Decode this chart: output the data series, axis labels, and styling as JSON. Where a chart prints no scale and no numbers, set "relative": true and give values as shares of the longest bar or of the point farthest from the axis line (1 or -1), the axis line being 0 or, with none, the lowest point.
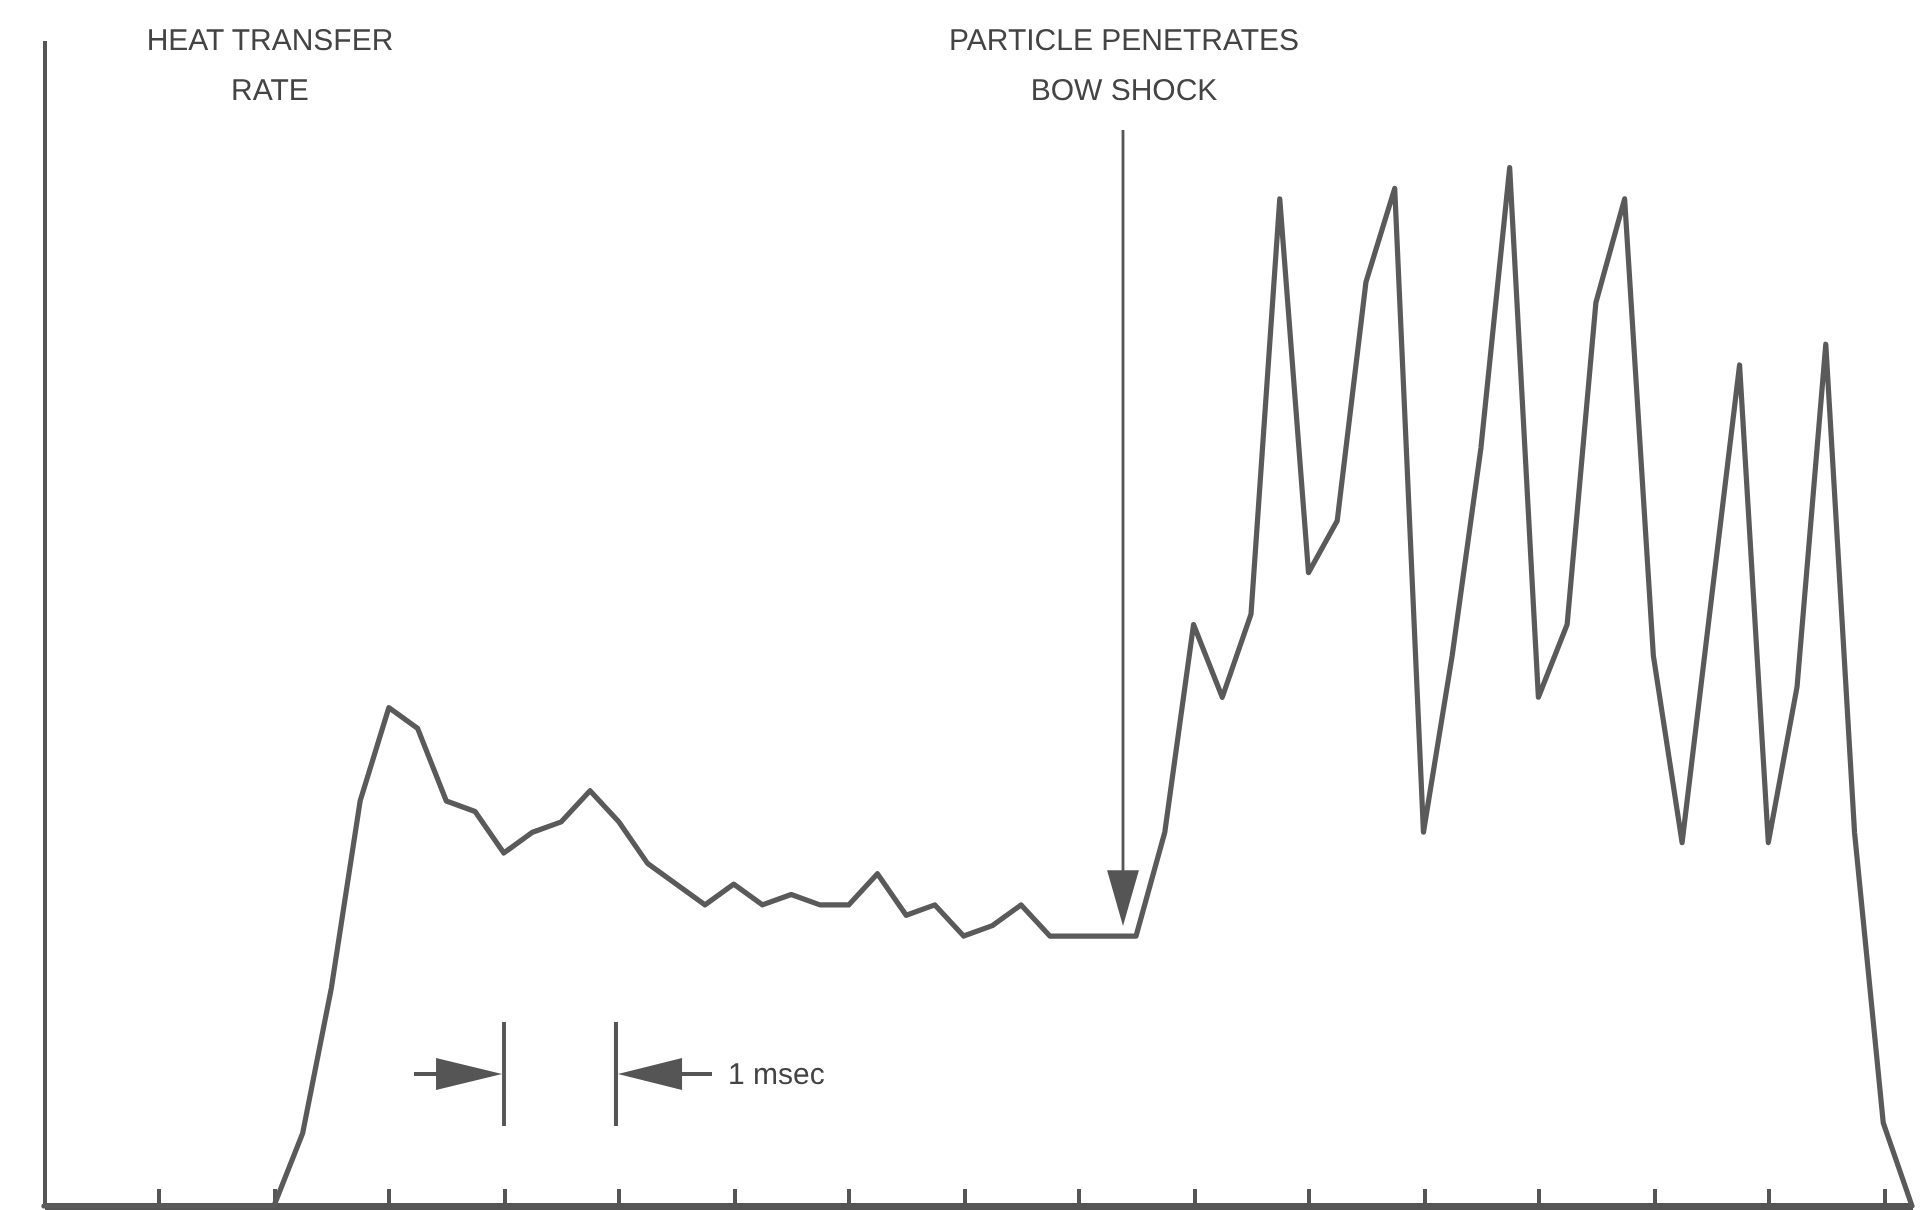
{
  "chart_data": {
    "type": "line",
    "relative": true,
    "ylabel": "HEAT TRANSFER RATE",
    "annotations": [
      "PARTICLE PENETRATES BOW SHOCK",
      "1 msec"
    ],
    "categories": [
      null,
      null,
      null,
      null,
      null,
      null,
      null,
      null,
      null,
      null,
      null,
      null,
      null,
      null,
      null,
      null,
      null,
      null,
      null,
      null,
      null,
      null,
      null,
      null,
      null,
      null,
      null,
      null,
      null,
      null,
      null,
      null,
      null,
      null,
      null,
      null,
      null,
      null,
      null,
      null,
      null,
      null,
      null,
      null,
      null,
      null,
      null,
      null,
      null,
      null,
      null,
      null,
      null,
      null,
      null,
      null,
      null,
      null,
      null,
      null,
      null,
      null,
      null,
      null,
      null,
      null
    ],
    "series": [
      {
        "color": "#5a5a5a",
        "values": [
          0,
          0,
          0,
          0,
          0,
          0,
          0,
          0,
          0,
          0.07,
          0.21,
          0.39,
          0.48,
          0.46,
          0.39,
          0.38,
          0.34,
          0.36,
          0.37,
          0.4,
          0.37,
          0.33,
          0.31,
          0.29,
          0.31,
          0.29,
          0.3,
          0.29,
          0.29,
          0.32,
          0.28,
          0.29,
          0.26,
          0.27,
          0.29,
          0.26,
          0.26,
          0.26,
          0.26,
          0.36,
          0.56,
          0.49,
          0.57,
          0.97,
          0.61,
          0.66,
          0.89,
          0.98,
          0.36,
          0.53,
          0.73,
          1,
          0.49,
          0.56,
          0.87,
          0.97,
          0.53,
          0.35,
          0.58,
          0.81,
          0.35,
          0.5,
          0.83,
          0.36,
          0.08,
          0
        ]
      }
    ]
  }
}
